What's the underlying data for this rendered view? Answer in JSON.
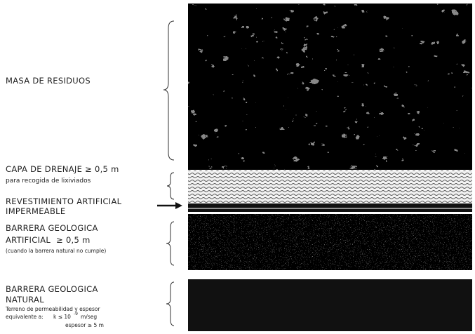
{
  "labels": {
    "waste": "MASA DE RESIDUOS",
    "drainage": [
      "CAPA DE DRENAJE ≥ 0,5 m",
      "para recogida de lixiviados"
    ],
    "liner": [
      "REVESTIMIENTO ARTIFICIAL",
      "IMPERMEABLE"
    ],
    "artificial_barrier": [
      "BARRERA GEOLOGICA",
      "ARTIFICIAL  ≥ 0,5 m",
      "(cuando la barrera natural no cumple)"
    ],
    "natural_barrier": [
      "BARRERA GEOLOGICA",
      "NATURAL",
      "Terreno de permeabilidad y espesor"
    ],
    "permeability": {
      "prefix": "equivalente a:",
      "k": "k ≤ 10",
      "exponent": "-9",
      "unit": "m/seg"
    },
    "thickness": "espesor ≥ 5 m"
  }
}
